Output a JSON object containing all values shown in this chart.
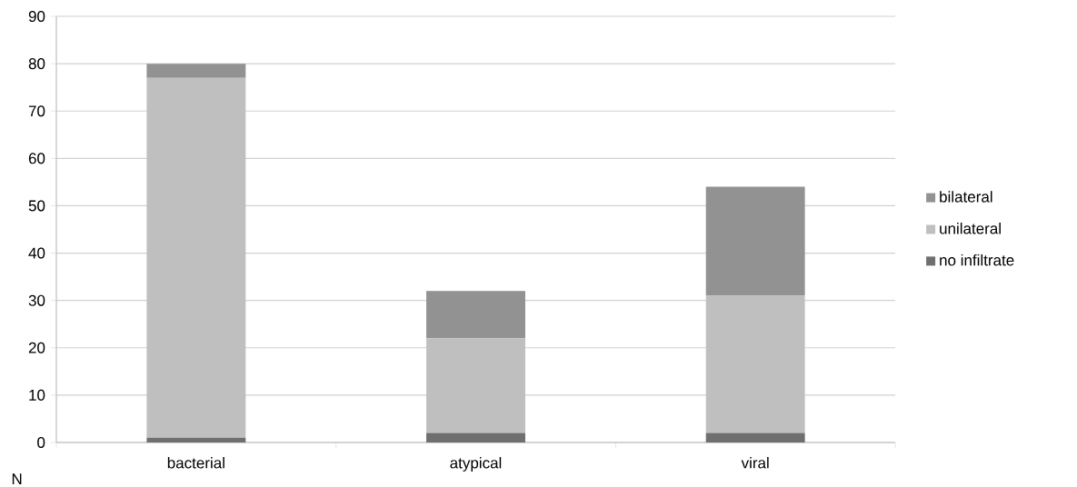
{
  "chart_data": {
    "type": "bar",
    "stacked": true,
    "categories": [
      "bacterial",
      "atypical",
      "viral"
    ],
    "series": [
      {
        "name": "no infiltrate",
        "color": "#6f6f6f",
        "values": [
          1,
          2,
          2
        ]
      },
      {
        "name": "unilateral",
        "color": "#bfbfbf",
        "values": [
          76,
          20,
          29
        ]
      },
      {
        "name": "bilateral",
        "color": "#929292",
        "values": [
          3,
          10,
          23
        ]
      }
    ],
    "ylim": [
      0,
      90
    ],
    "yticks": [
      0,
      10,
      20,
      30,
      40,
      50,
      60,
      70,
      80,
      90
    ],
    "grid": "y",
    "legend": "right",
    "annotations": [
      "N"
    ]
  }
}
